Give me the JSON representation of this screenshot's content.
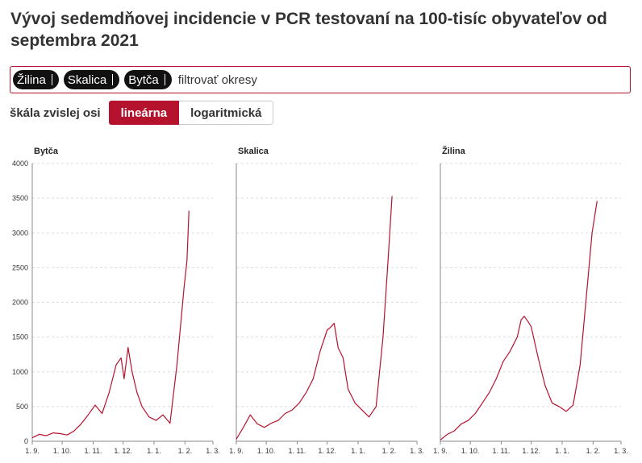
{
  "title": "Vývoj sedemdňovej incidencie v PCR testovaní na 100-tisíc obyvateľov od septembra 2021",
  "filter": {
    "tags": [
      "Žilina",
      "Skalica",
      "Bytča"
    ],
    "placeholder": "filtrovať okresy"
  },
  "scale": {
    "label": "škála zvislej osi",
    "options": [
      "lineárna",
      "logaritmická"
    ],
    "selected": "lineárna"
  },
  "colors": {
    "accent": "#b5132d",
    "line": "#b5132d"
  },
  "chart_data": {
    "type": "line",
    "x_ticks": [
      "1. 9.",
      "1. 10.",
      "1. 11.",
      "1. 12.",
      "1. 1.",
      "1. 2.",
      "1. 3."
    ],
    "ylim": [
      0,
      4000
    ],
    "y_ticks": [
      0,
      500,
      1000,
      1500,
      2000,
      2500,
      3000,
      3500,
      4000
    ],
    "grid": "horizontal dashed",
    "panels": [
      {
        "title": "Bytča",
        "x": [
          "2021-09-01",
          "2021-09-08",
          "2021-09-15",
          "2021-09-22",
          "2021-09-29",
          "2021-10-06",
          "2021-10-13",
          "2021-10-20",
          "2021-10-27",
          "2021-11-03",
          "2021-11-10",
          "2021-11-17",
          "2021-11-24",
          "2021-11-29",
          "2021-12-02",
          "2021-12-06",
          "2021-12-10",
          "2021-12-15",
          "2021-12-20",
          "2021-12-27",
          "2022-01-03",
          "2022-01-10",
          "2022-01-17",
          "2022-01-24",
          "2022-01-31",
          "2022-02-03",
          "2022-02-05"
        ],
        "values": [
          50,
          100,
          80,
          120,
          110,
          90,
          150,
          250,
          380,
          520,
          400,
          700,
          1100,
          1200,
          900,
          1350,
          1000,
          700,
          500,
          350,
          300,
          380,
          260,
          1100,
          2200,
          2600,
          3320
        ]
      },
      {
        "title": "Skalica",
        "x": [
          "2021-09-01",
          "2021-09-08",
          "2021-09-15",
          "2021-09-22",
          "2021-09-29",
          "2021-10-06",
          "2021-10-13",
          "2021-10-20",
          "2021-10-27",
          "2021-11-03",
          "2021-11-10",
          "2021-11-17",
          "2021-11-24",
          "2021-12-01",
          "2021-12-05",
          "2021-12-08",
          "2021-12-12",
          "2021-12-17",
          "2021-12-22",
          "2021-12-29",
          "2022-01-05",
          "2022-01-12",
          "2022-01-19",
          "2022-01-26",
          "2022-01-31",
          "2022-02-04"
        ],
        "values": [
          30,
          200,
          380,
          250,
          200,
          260,
          300,
          400,
          450,
          550,
          700,
          900,
          1300,
          1600,
          1650,
          1700,
          1350,
          1200,
          750,
          550,
          450,
          350,
          500,
          1500,
          2600,
          3530
        ]
      },
      {
        "title": "Žilina",
        "x": [
          "2021-09-01",
          "2021-09-08",
          "2021-09-15",
          "2021-09-22",
          "2021-09-29",
          "2021-10-06",
          "2021-10-13",
          "2021-10-20",
          "2021-10-27",
          "2021-11-03",
          "2021-11-10",
          "2021-11-17",
          "2021-11-21",
          "2021-11-24",
          "2021-11-28",
          "2021-12-01",
          "2021-12-08",
          "2021-12-15",
          "2021-12-22",
          "2021-12-29",
          "2022-01-05",
          "2022-01-12",
          "2022-01-19",
          "2022-01-26",
          "2022-01-31",
          "2022-02-05"
        ],
        "values": [
          20,
          100,
          150,
          250,
          300,
          400,
          550,
          700,
          900,
          1150,
          1300,
          1500,
          1750,
          1800,
          1720,
          1650,
          1200,
          800,
          550,
          500,
          430,
          520,
          1100,
          2200,
          3000,
          3460
        ]
      }
    ]
  }
}
